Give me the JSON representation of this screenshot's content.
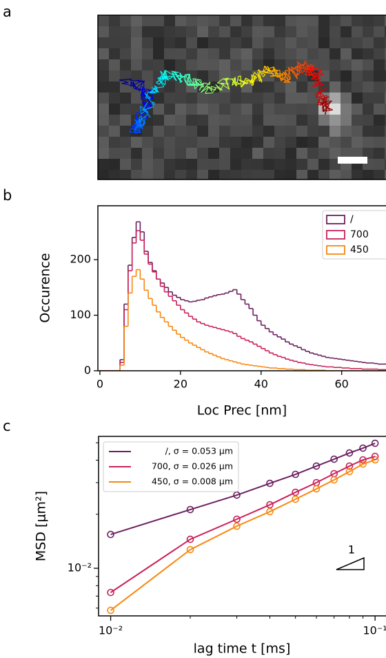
{
  "panel_labels": [
    "a",
    "b",
    "c"
  ],
  "chart_data": [
    {
      "type": "histogram",
      "xlabel": "Loc Prec [nm]",
      "ylabel": "Occurence",
      "bins": [
        0,
        1,
        2,
        3,
        4,
        5,
        6,
        7,
        8,
        9,
        10,
        11,
        12,
        13,
        14,
        15,
        16,
        17,
        18,
        19,
        20,
        21,
        22,
        23,
        24,
        25,
        26,
        27,
        28,
        29,
        30,
        31,
        32,
        33,
        34,
        35,
        36,
        37,
        38,
        39,
        40,
        41,
        42,
        43,
        44,
        45,
        46,
        47,
        48,
        49,
        50,
        51,
        52,
        53,
        54,
        55,
        56,
        57,
        58,
        59,
        60,
        61,
        62,
        63,
        64,
        65,
        66,
        67,
        68,
        69,
        70,
        71
      ],
      "series": [
        {
          "name": "/",
          "color": "#6b1f5f",
          "values": [
            0,
            0,
            0,
            0,
            0,
            20,
            120,
            190,
            240,
            268,
            250,
            215,
            195,
            180,
            165,
            158,
            150,
            142,
            136,
            132,
            128,
            126,
            124,
            125,
            127,
            128,
            131,
            133,
            135,
            137,
            138,
            140,
            143,
            146,
            138,
            128,
            120,
            112,
            100,
            90,
            82,
            76,
            70,
            65,
            61,
            57,
            52,
            48,
            45,
            42,
            38,
            35,
            32,
            30,
            28,
            26,
            24,
            23,
            22,
            21,
            20,
            19,
            18,
            17,
            16,
            15,
            14,
            14,
            13,
            12,
            12
          ]
        },
        {
          "name": "700",
          "color": "#c8205a",
          "values": [
            0,
            0,
            0,
            0,
            0,
            15,
            110,
            180,
            230,
            252,
            235,
            210,
            192,
            178,
            165,
            152,
            142,
            134,
            126,
            118,
            110,
            104,
            98,
            93,
            88,
            85,
            82,
            80,
            78,
            76,
            74,
            72,
            70,
            67,
            62,
            58,
            55,
            52,
            48,
            44,
            40,
            36,
            32,
            29,
            26,
            24,
            21,
            19,
            17,
            15,
            14,
            12,
            11,
            10,
            9,
            8,
            7,
            7,
            6,
            6,
            5,
            5,
            4,
            4,
            4,
            3,
            3,
            3,
            3,
            2,
            2
          ]
        },
        {
          "name": "450",
          "color": "#f7880f",
          "values": [
            0,
            0,
            0,
            0,
            0,
            10,
            80,
            140,
            170,
            182,
            165,
            145,
            130,
            118,
            106,
            96,
            88,
            80,
            73,
            66,
            60,
            55,
            50,
            46,
            42,
            38,
            34,
            31,
            28,
            25,
            22,
            20,
            18,
            16,
            14,
            12,
            11,
            10,
            9,
            8,
            7,
            6,
            5,
            5,
            4,
            4,
            3,
            3,
            2,
            2,
            2,
            1,
            1,
            1,
            1,
            1,
            0,
            0,
            0,
            0,
            0,
            0,
            0,
            0,
            0,
            0,
            0,
            0,
            0,
            0,
            0
          ]
        }
      ],
      "xlim": [
        -0.5,
        71
      ],
      "ylim": [
        0,
        297
      ],
      "xticks": [
        0,
        20,
        40,
        60
      ],
      "yticks": [
        0,
        100,
        200
      ],
      "legend": "upper right"
    },
    {
      "type": "line",
      "xlabel": "lag time t [ms]",
      "ylabel": "MSD [μm²]",
      "xscale": "log",
      "yscale": "log",
      "x": [
        0.01,
        0.02,
        0.03,
        0.04,
        0.05,
        0.06,
        0.07,
        0.08,
        0.09,
        0.1
      ],
      "series": [
        {
          "name": "/, σ = 0.053 μm",
          "color": "#6b1f5f",
          "values": [
            0.01543,
            0.02123,
            0.02557,
            0.02972,
            0.03336,
            0.03709,
            0.04053,
            0.04389,
            0.0467,
            0.04968
          ]
        },
        {
          "name": "700, σ = 0.026 μm",
          "color": "#c8205a",
          "values": [
            0.00733,
            0.0145,
            0.01876,
            0.02258,
            0.02649,
            0.02999,
            0.03365,
            0.03709,
            0.04016,
            0.04199
          ]
        },
        {
          "name": "450, σ = 0.008 μm",
          "color": "#f7880f",
          "values": [
            0.00583,
            0.0127,
            0.01716,
            0.02067,
            0.02425,
            0.02769,
            0.03107,
            0.03455,
            0.03809,
            0.04016
          ]
        }
      ],
      "xlim": [
        0.009,
        0.11
      ],
      "ylim": [
        0.00543,
        0.0543
      ],
      "xticks": [
        {
          "value": 0.01,
          "label": "10⁻²"
        },
        {
          "value": 0.1,
          "label": "10⁻¹"
        }
      ],
      "yticks": [
        {
          "value": 0.01,
          "label": "10⁻²"
        }
      ],
      "xminorticks": [
        0.02,
        0.03,
        0.04,
        0.05,
        0.06,
        0.07,
        0.08,
        0.09
      ],
      "yminorticks": [
        0.006,
        0.007,
        0.008,
        0.009,
        0.02,
        0.03,
        0.04,
        0.05
      ],
      "legend": "upper left",
      "marker": "circle",
      "annotation": "1"
    }
  ]
}
